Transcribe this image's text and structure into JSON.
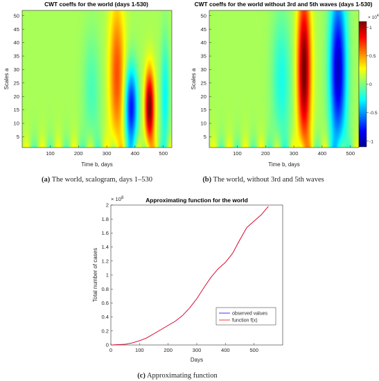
{
  "chart_data": [
    {
      "type": "heatmap",
      "title": "CWT coeffs for the world (days 1-530)",
      "xlabel": "Time b, days",
      "ylabel": "Scales a",
      "xlim": [
        1,
        530
      ],
      "ylim": [
        1,
        52
      ],
      "xticks": [
        100,
        200,
        300,
        400,
        500
      ],
      "yticks": [
        5,
        10,
        15,
        20,
        25,
        30,
        35,
        40,
        45,
        50
      ],
      "caption_tag": "(a)",
      "caption": " The world, scalogram, days 1–530",
      "features": [
        {
          "kind": "positive",
          "x": 335,
          "y": 28,
          "sx": 28,
          "sy": 28,
          "amp": 0.55
        },
        {
          "kind": "negative",
          "x": 385,
          "y": 16,
          "sx": 22,
          "sy": 15,
          "amp": -0.85
        },
        {
          "kind": "positive",
          "x": 450,
          "y": 16,
          "sx": 17,
          "sy": 14,
          "amp": 1.0
        },
        {
          "kind": "negative",
          "x": 505,
          "y": 20,
          "sx": 15,
          "sy": 22,
          "amp": -0.35
        },
        {
          "kind": "negative",
          "x": 245,
          "y": 22,
          "sx": 30,
          "sy": 22,
          "amp": -0.2
        }
      ]
    },
    {
      "type": "heatmap",
      "title": "CWT coeffs for the world without 3rd and 5th waves (days 1-530)",
      "xlabel": "Time b, days",
      "ylabel": "Scales a",
      "xlim": [
        1,
        530
      ],
      "ylim": [
        1,
        52
      ],
      "xticks": [
        100,
        200,
        300,
        400,
        500
      ],
      "yticks": [
        5,
        10,
        15,
        20,
        25,
        30,
        35,
        40,
        45,
        50
      ],
      "colorbar": {
        "ticks": [
          1,
          0.5,
          0,
          -0.5,
          -1
        ],
        "exponent": "× 10^4"
      },
      "caption_tag": "(b)",
      "caption": " The world, without 3rd and 5th waves",
      "features": [
        {
          "kind": "positive",
          "x": 335,
          "y": 30,
          "sx": 24,
          "sy": 30,
          "amp": 1.0
        },
        {
          "kind": "negative",
          "x": 455,
          "y": 30,
          "sx": 30,
          "sy": 30,
          "amp": -1.0
        },
        {
          "kind": "negative",
          "x": 255,
          "y": 26,
          "sx": 34,
          "sy": 26,
          "amp": -0.3
        }
      ]
    },
    {
      "type": "line",
      "title": "Approximating function for the world",
      "xlabel": "Days",
      "ylabel": "Total number of cases",
      "xlim": [
        0,
        600
      ],
      "ylim": [
        0,
        2
      ],
      "y_exponent": "× 10^8",
      "xticks": [
        0,
        100,
        200,
        300,
        400,
        500
      ],
      "yticks": [
        0,
        0.2,
        0.4,
        0.6,
        0.8,
        1,
        1.2,
        1.4,
        1.6,
        1.8,
        2
      ],
      "legend_position": "bottom-right",
      "caption_tag": "(c)",
      "caption": " Approximating function",
      "series": [
        {
          "name": "observed values",
          "color": "#0000ff",
          "x": [
            0,
            25,
            50,
            75,
            100,
            125,
            150,
            175,
            200,
            225,
            250,
            275,
            300,
            325,
            350,
            375,
            400,
            425,
            450,
            475,
            500,
            525,
            550
          ],
          "y": [
            0,
            0.005,
            0.01,
            0.03,
            0.06,
            0.1,
            0.16,
            0.22,
            0.28,
            0.34,
            0.42,
            0.53,
            0.66,
            0.82,
            0.97,
            1.09,
            1.18,
            1.31,
            1.5,
            1.68,
            1.77,
            1.86,
            1.98
          ]
        },
        {
          "name": "function f(x)",
          "color": "#ff0000",
          "x": [
            0,
            25,
            50,
            75,
            100,
            125,
            150,
            175,
            200,
            225,
            250,
            275,
            300,
            325,
            350,
            375,
            400,
            425,
            450,
            475,
            500,
            525,
            550
          ],
          "y": [
            0,
            0.005,
            0.01,
            0.03,
            0.06,
            0.1,
            0.16,
            0.22,
            0.28,
            0.34,
            0.42,
            0.53,
            0.66,
            0.82,
            0.97,
            1.09,
            1.18,
            1.31,
            1.5,
            1.68,
            1.77,
            1.86,
            1.98
          ]
        }
      ]
    }
  ]
}
